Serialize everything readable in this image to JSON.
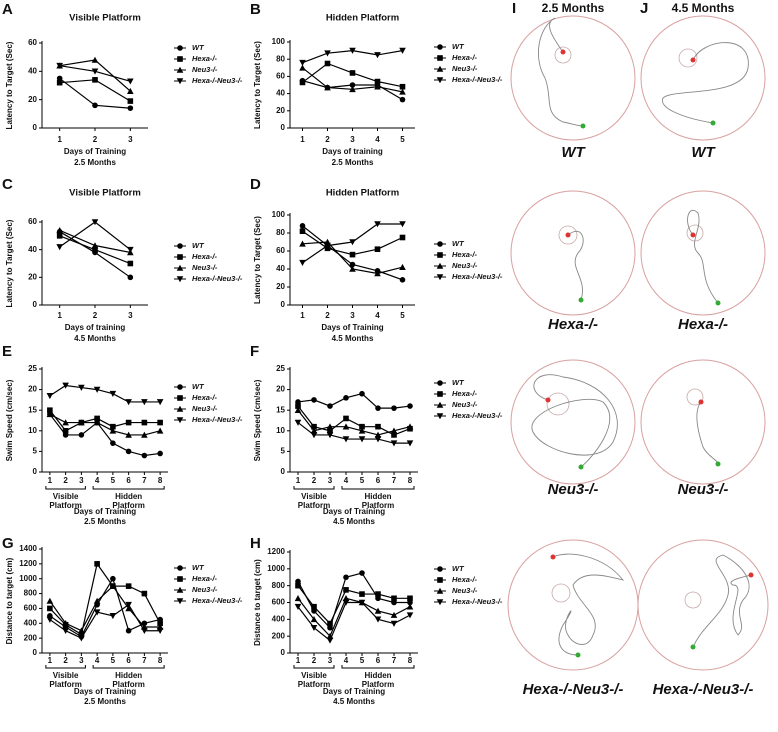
{
  "chart_data": [
    {
      "type": "line",
      "letter": "A",
      "title": "Visible Platform",
      "ylabel": "Latency to Target (Sec)",
      "xlabel": "Days of Training",
      "subtitle": "2.5 Months",
      "categories": [
        "1",
        "2",
        "3"
      ],
      "ylim": [
        0,
        60
      ],
      "yticks": [
        0,
        20,
        40,
        60
      ],
      "series": [
        {
          "name": "WT",
          "color": "#000000",
          "marker": "circle",
          "values": [
            35,
            16,
            14
          ]
        },
        {
          "name": "Hexa-/-",
          "color": "#000000",
          "marker": "square",
          "values": [
            32,
            34,
            19
          ]
        },
        {
          "name": "Neu3-/-",
          "color": "#000000",
          "marker": "triangle",
          "values": [
            44,
            48,
            26
          ]
        },
        {
          "name": "Hexa-/-Neu3-/-",
          "color": "#000000",
          "marker": "triangle-down",
          "values": [
            44,
            40,
            33
          ]
        }
      ]
    },
    {
      "type": "line",
      "letter": "B",
      "title": "Hidden Platform",
      "ylabel": "Latency to Target (Sec)",
      "xlabel": "Days of training",
      "subtitle": "2.5 Months",
      "categories": [
        "1",
        "2",
        "3",
        "4",
        "5"
      ],
      "ylim": [
        0,
        100
      ],
      "yticks": [
        0,
        20,
        40,
        60,
        80,
        100
      ],
      "series": [
        {
          "name": "WT",
          "color": "#000000",
          "marker": "circle",
          "values": [
            55,
            47,
            50,
            50,
            33
          ]
        },
        {
          "name": "Hexa-/-",
          "color": "#000000",
          "marker": "square",
          "values": [
            53,
            75,
            64,
            54,
            48
          ]
        },
        {
          "name": "Neu3-/-",
          "color": "#000000",
          "marker": "triangle",
          "values": [
            70,
            47,
            45,
            48,
            42
          ]
        },
        {
          "name": "Hexa-/-Neu3-/-",
          "color": "#000000",
          "marker": "triangle-down",
          "values": [
            76,
            87,
            90,
            85,
            90
          ]
        }
      ]
    },
    {
      "type": "line",
      "letter": "C",
      "title": "Visible Platform",
      "ylabel": "Latency to Target (Sec)",
      "xlabel": "Days of training",
      "subtitle": "4.5 Months",
      "categories": [
        "1",
        "2",
        "3"
      ],
      "ylim": [
        0,
        60
      ],
      "yticks": [
        0,
        20,
        40,
        60
      ],
      "series": [
        {
          "name": "WT",
          "color": "#000000",
          "marker": "circle",
          "values": [
            53,
            38,
            20
          ]
        },
        {
          "name": "Hexa-/-",
          "color": "#000000",
          "marker": "square",
          "values": [
            50,
            40,
            30
          ]
        },
        {
          "name": "Neu3-/-",
          "color": "#000000",
          "marker": "triangle",
          "values": [
            54,
            43,
            38
          ]
        },
        {
          "name": "Hexa-/-Neu3-/-",
          "color": "#000000",
          "marker": "triangle-down",
          "values": [
            42,
            60,
            40
          ]
        }
      ]
    },
    {
      "type": "line",
      "letter": "D",
      "title": "Hidden Platform",
      "ylabel": "Latency to Target (Sec)",
      "xlabel": "Days of Training",
      "subtitle": "4.5 Months",
      "categories": [
        "1",
        "2",
        "3",
        "4",
        "5"
      ],
      "ylim": [
        0,
        100
      ],
      "yticks": [
        0,
        20,
        40,
        60,
        80,
        100
      ],
      "series": [
        {
          "name": "WT",
          "color": "#000000",
          "marker": "circle",
          "values": [
            88,
            66,
            45,
            38,
            28
          ]
        },
        {
          "name": "Hexa-/-",
          "color": "#000000",
          "marker": "square",
          "values": [
            82,
            63,
            56,
            62,
            75
          ]
        },
        {
          "name": "Neu3-/-",
          "color": "#000000",
          "marker": "triangle",
          "values": [
            68,
            70,
            40,
            35,
            42
          ]
        },
        {
          "name": "Hexa-/-Neu3-/-",
          "color": "#000000",
          "marker": "triangle-down",
          "values": [
            47,
            66,
            70,
            90,
            90
          ]
        }
      ]
    },
    {
      "type": "line",
      "letter": "E",
      "ylabel": "Swim Speed (cm/sec)",
      "xlabel": "Days of Training",
      "subtitle": "2.5 Months",
      "categories": [
        "1",
        "2",
        "3",
        "4",
        "5",
        "6",
        "7",
        "8"
      ],
      "ylim": [
        0,
        25
      ],
      "yticks": [
        0,
        5,
        10,
        15,
        20,
        25
      ],
      "annotations": [
        {
          "label": "Visible Platform",
          "from": "1",
          "to": "3"
        },
        {
          "label": "Hidden Platform",
          "from": "4",
          "to": "8"
        }
      ],
      "series": [
        {
          "name": "WT",
          "color": "#000000",
          "marker": "circle",
          "values": [
            14,
            9,
            9,
            12,
            7,
            5,
            4,
            4.5
          ]
        },
        {
          "name": "Hexa-/-",
          "color": "#000000",
          "marker": "square",
          "values": [
            15,
            10,
            12,
            13,
            11,
            12,
            12,
            12
          ]
        },
        {
          "name": "Neu3-/-",
          "color": "#000000",
          "marker": "triangle",
          "values": [
            14,
            12,
            12,
            12,
            10,
            9,
            9,
            10
          ]
        },
        {
          "name": "Hexa-/-Neu3-/-",
          "color": "#000000",
          "marker": "triangle-down",
          "values": [
            18.5,
            21,
            20.5,
            20,
            19,
            17,
            17,
            17
          ]
        }
      ]
    },
    {
      "type": "line",
      "letter": "F",
      "ylabel": "Swim Speed (cm/sec)",
      "xlabel": "Days of Training",
      "subtitle": "4.5 Months",
      "categories": [
        "1",
        "2",
        "3",
        "4",
        "5",
        "6",
        "7",
        "8"
      ],
      "ylim": [
        0,
        25
      ],
      "yticks": [
        0,
        5,
        10,
        15,
        20,
        25
      ],
      "annotations": [
        {
          "label": "Visible Platform",
          "from": "1",
          "to": "3"
        },
        {
          "label": "Hidden Platform",
          "from": "4",
          "to": "8"
        }
      ],
      "series": [
        {
          "name": "WT",
          "color": "#000000",
          "marker": "circle",
          "values": [
            17,
            17.5,
            16,
            18,
            19,
            15.5,
            15.5,
            16
          ]
        },
        {
          "name": "Hexa-/-",
          "color": "#000000",
          "marker": "square",
          "values": [
            16,
            11,
            10,
            13,
            11,
            11,
            9,
            10.5
          ]
        },
        {
          "name": "Neu3-/-",
          "color": "#000000",
          "marker": "triangle",
          "values": [
            15,
            10,
            11,
            11,
            10,
            9,
            10,
            11
          ]
        },
        {
          "name": "Hexa-/-Neu3-/-",
          "color": "#000000",
          "marker": "triangle-down",
          "values": [
            12,
            9,
            9,
            8,
            8,
            8,
            7,
            7
          ]
        }
      ]
    },
    {
      "type": "line",
      "letter": "G",
      "ylabel": "Distance to target (cm)",
      "xlabel": "Days of Training",
      "subtitle": "2.5 Months",
      "categories": [
        "1",
        "2",
        "3",
        "4",
        "5",
        "6",
        "7",
        "8"
      ],
      "ylim": [
        0,
        1400
      ],
      "yticks": [
        0,
        200,
        400,
        600,
        800,
        1000,
        1200,
        1400
      ],
      "annotations": [
        {
          "label": "Visible Platform",
          "from": "1",
          "to": "3"
        },
        {
          "label": "Hidden Platform",
          "from": "4",
          "to": "8"
        }
      ],
      "series": [
        {
          "name": "WT",
          "color": "#000000",
          "marker": "circle",
          "values": [
            500,
            350,
            220,
            650,
            1000,
            300,
            400,
            450
          ]
        },
        {
          "name": "Hexa-/-",
          "color": "#000000",
          "marker": "square",
          "values": [
            600,
            380,
            250,
            1200,
            900,
            900,
            800,
            400
          ]
        },
        {
          "name": "Neu3-/-",
          "color": "#000000",
          "marker": "triangle",
          "values": [
            700,
            400,
            300,
            700,
            900,
            600,
            350,
            350
          ]
        },
        {
          "name": "Hexa-/-Neu3-/-",
          "color": "#000000",
          "marker": "triangle-down",
          "values": [
            450,
            300,
            200,
            550,
            500,
            650,
            300,
            300
          ]
        }
      ]
    },
    {
      "type": "line",
      "letter": "H",
      "ylabel": "Distance to target (cm)",
      "xlabel": "Days of Training",
      "subtitle": "4.5 Months",
      "categories": [
        "1",
        "2",
        "3",
        "4",
        "5",
        "6",
        "7",
        "8"
      ],
      "ylim": [
        0,
        1200
      ],
      "yticks": [
        0,
        200,
        400,
        600,
        800,
        1000,
        1200
      ],
      "annotations": [
        {
          "label": "Visible Platform",
          "from": "1",
          "to": "3"
        },
        {
          "label": "Hidden Platform",
          "from": "4",
          "to": "8"
        }
      ],
      "series": [
        {
          "name": "WT",
          "color": "#000000",
          "marker": "circle",
          "values": [
            850,
            500,
            300,
            900,
            950,
            650,
            600,
            600
          ]
        },
        {
          "name": "Hexa-/-",
          "color": "#000000",
          "marker": "square",
          "values": [
            800,
            550,
            350,
            750,
            700,
            700,
            650,
            650
          ]
        },
        {
          "name": "Neu3-/-",
          "color": "#000000",
          "marker": "triangle",
          "values": [
            650,
            400,
            200,
            650,
            600,
            500,
            450,
            550
          ]
        },
        {
          "name": "Hexa-/-Neu3-/-",
          "color": "#000000",
          "marker": "triangle-down",
          "values": [
            550,
            300,
            150,
            600,
            600,
            400,
            350,
            450
          ]
        }
      ]
    }
  ],
  "track_panels": {
    "columns": [
      {
        "letter": "I",
        "title": "2.5 Months"
      },
      {
        "letter": "J",
        "title": "4.5 Months"
      }
    ],
    "genotypes": [
      "WT",
      "Hexa-/-",
      "Neu3-/-",
      "Hexa-/-Neu3-/-"
    ]
  }
}
